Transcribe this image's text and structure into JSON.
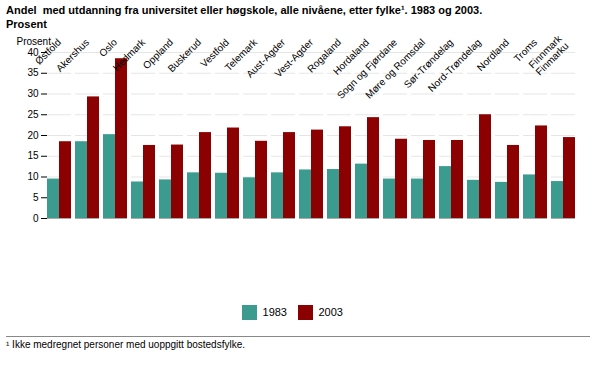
{
  "chart_data": {
    "type": "bar",
    "title": "Andel  med utdanning fra universitet eller høgskole, alle nivåene, etter fylke¹. 1983 og 2003.",
    "subtitle": "Prosent",
    "y_label": "Prosent",
    "footnote": "¹ Ikke medregnet personer med uoppgitt bostedsfylke.",
    "categories": [
      "Østfold",
      "Akershus",
      "Oslo",
      "Hedmark",
      "Oppland",
      "Buskerud",
      "Vestfold",
      "Telemark",
      "Aust-Agder",
      "Vest-Agder",
      "Rogaland",
      "Hordaland",
      "Sogn og Fjørdane",
      "Møre og Romsdal",
      "Sør-Trøndelag",
      "Nord-Trøndelag",
      "Nordland",
      "Troms",
      "Finnmark\nFinmarku"
    ],
    "series": [
      {
        "name": "1983",
        "color": "#3a9b8e",
        "values": [
          9.5,
          18.5,
          20.2,
          8.8,
          9.3,
          11.0,
          10.9,
          9.8,
          11.0,
          11.7,
          11.8,
          13.1,
          9.5,
          9.5,
          12.5,
          9.2,
          8.7,
          10.5,
          8.9
        ]
      },
      {
        "name": "2003",
        "color": "#8b0000",
        "values": [
          18.5,
          29.3,
          38.5,
          17.6,
          17.7,
          20.7,
          21.8,
          18.6,
          20.7,
          21.3,
          22.1,
          24.3,
          19.1,
          18.8,
          18.8,
          25.0,
          17.6,
          22.3,
          19.5
        ]
      }
    ],
    "ylim": [
      0,
      40
    ],
    "yticks": [
      0,
      5,
      10,
      15,
      20,
      25,
      30,
      35,
      40
    ],
    "grid": true,
    "legend": "bottom"
  }
}
